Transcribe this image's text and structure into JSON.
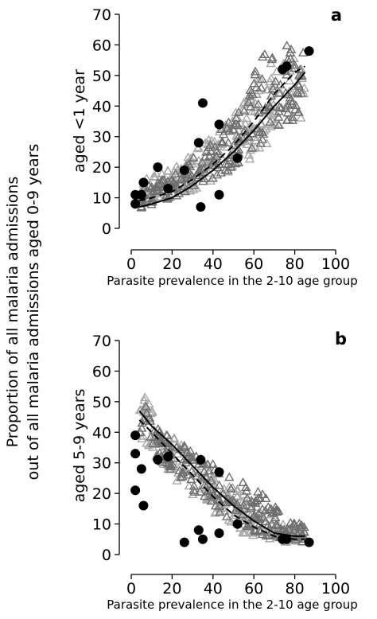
{
  "figure": {
    "shared_ylabel_line1": "Proportion of all malaria admissions",
    "shared_ylabel_line2": "out of all malaria admissions aged 0-9 years"
  },
  "colors": {
    "triangle_light": "#a8a8a8",
    "triangle_dark": "#6e6e6e",
    "points": "#000000",
    "curves": "#000000"
  },
  "chart_data": [
    {
      "type": "scatter",
      "panel_label": "a",
      "xlabel": "Parasite prevalence in the 2-10 age group",
      "ylabel": "aged <1 year",
      "xlim": [
        0,
        100
      ],
      "ylim": [
        0,
        70
      ],
      "xticks": [
        "0",
        "20",
        "40",
        "60",
        "80",
        "100"
      ],
      "yticks": [
        "0",
        "10",
        "20",
        "30",
        "40",
        "50",
        "60",
        "70"
      ],
      "grid": false,
      "observed_points": [
        [
          2,
          8
        ],
        [
          2,
          11
        ],
        [
          5,
          11
        ],
        [
          6,
          15
        ],
        [
          13,
          20
        ],
        [
          18,
          13
        ],
        [
          26,
          19
        ],
        [
          33,
          28
        ],
        [
          34,
          7
        ],
        [
          35,
          41
        ],
        [
          43,
          11
        ],
        [
          43,
          34
        ],
        [
          52,
          23
        ],
        [
          74,
          52
        ],
        [
          76,
          53
        ],
        [
          87,
          58
        ]
      ],
      "model_fit_solid": [
        [
          4,
          7
        ],
        [
          10,
          8
        ],
        [
          20,
          10
        ],
        [
          30,
          14
        ],
        [
          40,
          19
        ],
        [
          50,
          25
        ],
        [
          60,
          32
        ],
        [
          70,
          40
        ],
        [
          80,
          47
        ],
        [
          85,
          51
        ]
      ],
      "model_fit_dashed": [
        [
          4,
          9
        ],
        [
          10,
          10
        ],
        [
          20,
          12
        ],
        [
          30,
          16
        ],
        [
          40,
          21
        ],
        [
          50,
          27
        ],
        [
          60,
          35
        ],
        [
          70,
          44
        ],
        [
          80,
          51
        ],
        [
          85,
          53
        ]
      ],
      "simulated_triangles": {
        "marker": "open triangle",
        "light_band_y": [
          [
            4,
            7,
            15
          ],
          [
            15,
            9,
            19
          ],
          [
            25,
            11,
            22
          ],
          [
            35,
            14,
            28
          ],
          [
            45,
            17,
            34
          ],
          [
            55,
            21,
            41
          ],
          [
            65,
            26,
            52
          ],
          [
            75,
            33,
            58
          ],
          [
            85,
            36,
            56
          ]
        ],
        "dark_band_y": [
          [
            4,
            6,
            13
          ],
          [
            15,
            9,
            17
          ],
          [
            25,
            11,
            20
          ],
          [
            35,
            14,
            26
          ],
          [
            45,
            18,
            33
          ],
          [
            55,
            22,
            41
          ],
          [
            65,
            29,
            61
          ],
          [
            75,
            35,
            60
          ],
          [
            85,
            35,
            58
          ]
        ]
      }
    },
    {
      "type": "scatter",
      "panel_label": "b",
      "xlabel": "Parasite prevalence in the 2-10 age group",
      "ylabel": "aged 5-9 years",
      "xlim": [
        0,
        100
      ],
      "ylim": [
        0,
        70
      ],
      "xticks": [
        "0",
        "20",
        "40",
        "60",
        "80",
        "100"
      ],
      "yticks": [
        "0",
        "10",
        "20",
        "30",
        "40",
        "50",
        "60",
        "70"
      ],
      "grid": false,
      "observed_points": [
        [
          2,
          39
        ],
        [
          2,
          33
        ],
        [
          2,
          21
        ],
        [
          5,
          28
        ],
        [
          6,
          16
        ],
        [
          13,
          31
        ],
        [
          18,
          32
        ],
        [
          26,
          4
        ],
        [
          33,
          8
        ],
        [
          34,
          31
        ],
        [
          35,
          5
        ],
        [
          43,
          7
        ],
        [
          43,
          27
        ],
        [
          52,
          10
        ],
        [
          74,
          5
        ],
        [
          76,
          5
        ],
        [
          87,
          4
        ]
      ],
      "model_fit_solid": [
        [
          4,
          47
        ],
        [
          10,
          42
        ],
        [
          20,
          36
        ],
        [
          30,
          29
        ],
        [
          40,
          22
        ],
        [
          50,
          16
        ],
        [
          60,
          11
        ],
        [
          70,
          7
        ],
        [
          80,
          6
        ],
        [
          85,
          6
        ]
      ],
      "model_fit_dashed": [
        [
          4,
          44
        ],
        [
          10,
          40
        ],
        [
          20,
          33
        ],
        [
          30,
          26
        ],
        [
          40,
          19
        ],
        [
          50,
          13
        ],
        [
          60,
          9
        ],
        [
          70,
          6
        ],
        [
          80,
          5
        ],
        [
          85,
          5
        ]
      ],
      "simulated_triangles": {
        "marker": "open triangle",
        "light_band_y": [
          [
            4,
            38,
            56
          ],
          [
            15,
            30,
            42
          ],
          [
            25,
            22,
            36
          ],
          [
            35,
            16,
            32
          ],
          [
            45,
            11,
            26
          ],
          [
            55,
            7,
            20
          ],
          [
            65,
            5,
            14
          ],
          [
            75,
            4,
            10
          ],
          [
            85,
            4,
            8
          ]
        ],
        "dark_band_y": [
          [
            4,
            40,
            54
          ],
          [
            15,
            30,
            40
          ],
          [
            25,
            24,
            36
          ],
          [
            35,
            18,
            32
          ],
          [
            45,
            13,
            28
          ],
          [
            55,
            9,
            24
          ],
          [
            65,
            6,
            20
          ],
          [
            75,
            5,
            12
          ],
          [
            85,
            4,
            10
          ]
        ]
      }
    }
  ]
}
